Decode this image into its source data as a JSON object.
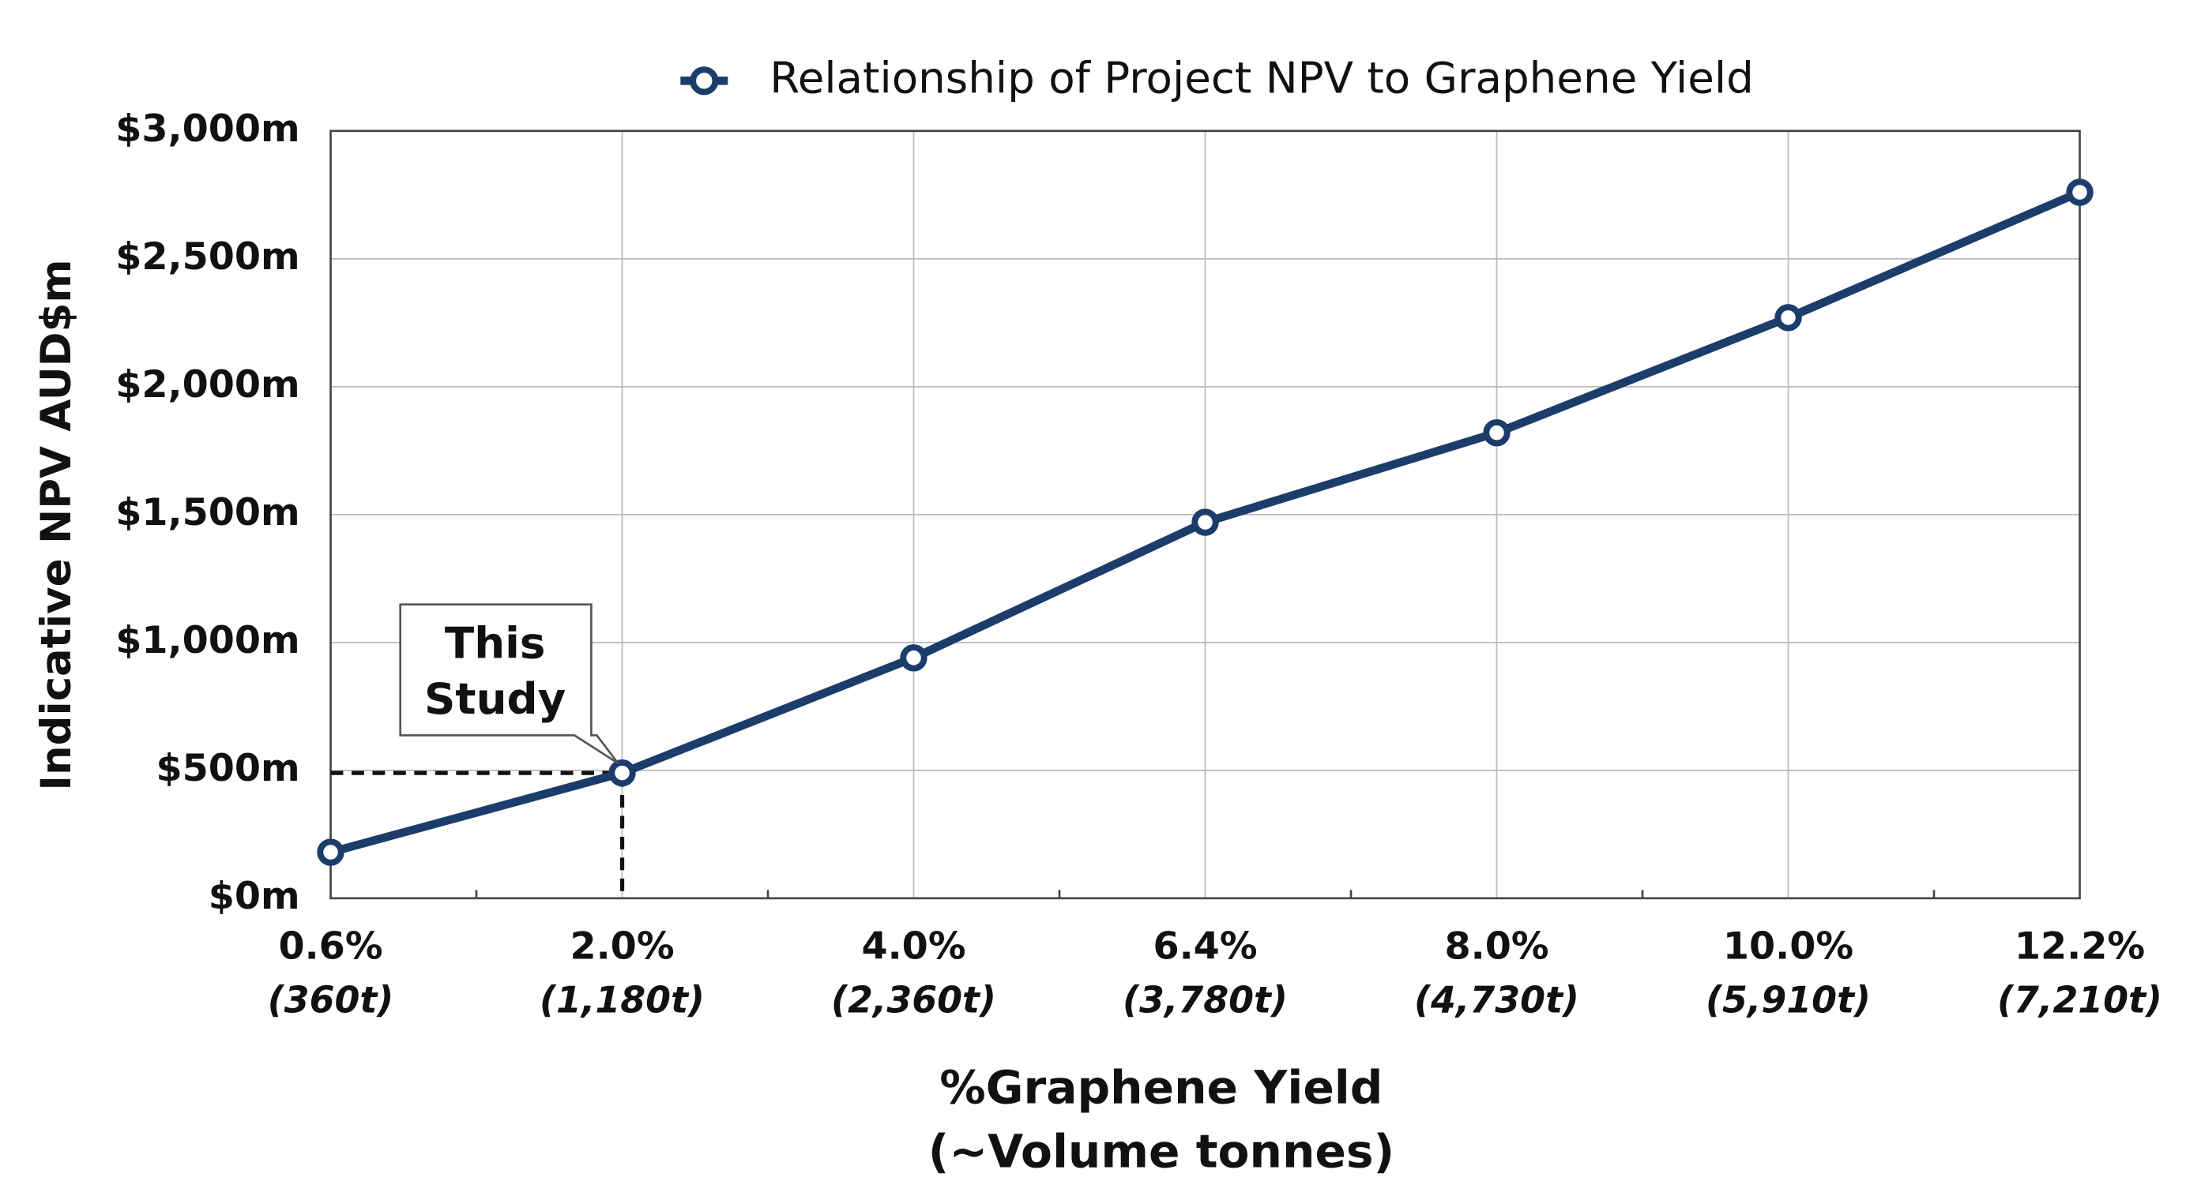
{
  "chart_data": {
    "type": "line",
    "ylabel": "Indicative NPV AUD$m",
    "xlabel": "%Graphene Yield",
    "xlabel_sub": "(~Volume tonnes)",
    "categories": [
      "0.6%",
      "2.0%",
      "4.0%",
      "6.4%",
      "8.0%",
      "10.0%",
      "12.2%"
    ],
    "category_tonnes": [
      "(360t)",
      "(1,180t)",
      "(2,360t)",
      "(3,780t)",
      "(4,730t)",
      "(5,910t)",
      "(7,210t)"
    ],
    "series": [
      {
        "name": "Relationship of Project NPV to Graphene Yield",
        "color": "#1c3d6b",
        "values": [
          180,
          490,
          940,
          1470,
          1820,
          2270,
          2760
        ]
      }
    ],
    "ylim": [
      0,
      3000
    ],
    "yticks": [
      {
        "value": 0,
        "label": "$0m"
      },
      {
        "value": 500,
        "label": "$500m"
      },
      {
        "value": 1000,
        "label": "$1,000m"
      },
      {
        "value": 1500,
        "label": "$1,500m"
      },
      {
        "value": 2000,
        "label": "$2,000m"
      },
      {
        "value": 2500,
        "label": "$2,500m"
      },
      {
        "value": 3000,
        "label": "$3,000m"
      }
    ],
    "grid": true,
    "annotation": [
      "This",
      "Study"
    ]
  }
}
